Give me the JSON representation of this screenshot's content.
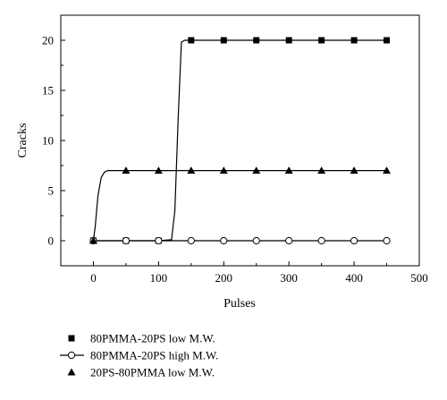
{
  "chart_data": {
    "type": "line",
    "xlabel": "Pulses",
    "ylabel": "Cracks",
    "xlim": [
      -50,
      500
    ],
    "ylim": [
      -2.5,
      22.5
    ],
    "xticks": [
      0,
      100,
      200,
      300,
      400,
      500
    ],
    "yticks": [
      0,
      5,
      10,
      15,
      20
    ],
    "grid": false,
    "legend_position": "bottom",
    "series": [
      {
        "name": "80PMMA-20PS low M.W.",
        "marker": "filled-square",
        "x": [
          0,
          50,
          100,
          150,
          200,
          250,
          300,
          350,
          400,
          450
        ],
        "y": [
          0,
          0,
          0,
          20,
          20,
          20,
          20,
          20,
          20,
          20
        ],
        "curve_x": [
          0,
          50,
          100,
          120,
          125,
          130,
          135,
          140,
          145,
          150,
          200,
          250,
          300,
          350,
          400,
          450
        ],
        "curve_y": [
          0,
          0,
          0,
          0.1,
          3,
          12,
          19.8,
          20,
          20,
          20,
          20,
          20,
          20,
          20,
          20,
          20
        ]
      },
      {
        "name": "80PMMA-20PS high M.W.",
        "marker": "open-circle",
        "x": [
          0,
          50,
          100,
          150,
          200,
          250,
          300,
          350,
          400,
          450
        ],
        "y": [
          0,
          0,
          0,
          0,
          0,
          0,
          0,
          0,
          0,
          0
        ],
        "curve_x": [
          0,
          450
        ],
        "curve_y": [
          0,
          0
        ]
      },
      {
        "name": "20PS-80PMMA low M.W.",
        "marker": "filled-triangle",
        "x": [
          0,
          50,
          100,
          150,
          200,
          250,
          300,
          350,
          400,
          450
        ],
        "y": [
          0,
          7,
          7,
          7,
          7,
          7,
          7,
          7,
          7,
          7
        ],
        "curve_x": [
          0,
          3,
          7,
          12,
          17,
          22,
          30,
          50,
          450
        ],
        "curve_y": [
          0,
          1.5,
          4.5,
          6.3,
          6.85,
          7,
          7,
          7,
          7
        ]
      }
    ]
  }
}
